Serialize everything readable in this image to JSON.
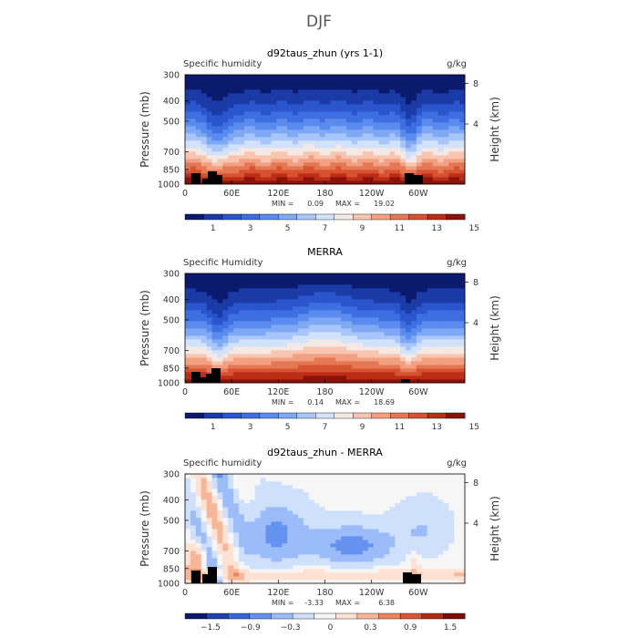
{
  "figure_title": "DJF",
  "chart_data": [
    {
      "type": "heatmap",
      "title": "d92taus_zhun (yrs 1-1)",
      "left_label": "Specific humidity",
      "right_label": "g/kg",
      "ylabel": "Pressure (mb)",
      "ylabel_right": "Height (km)",
      "x_ticks": [
        "0",
        "60E",
        "120E",
        "180",
        "120W",
        "60W"
      ],
      "y_ticks": [
        "300",
        "400",
        "500",
        "700",
        "850",
        "1000"
      ],
      "height_ticks": [
        "8",
        "4"
      ],
      "min_label": "MIN =",
      "min": "0.09",
      "max_label": "MAX =",
      "max": "19.02",
      "colorbar_labels": [
        "1",
        "3",
        "5",
        "7",
        "9",
        "11",
        "13",
        "15"
      ]
    },
    {
      "type": "heatmap",
      "title": "MERRA",
      "left_label": "Specific Humidity",
      "right_label": "g/kg",
      "ylabel": "Pressure (mb)",
      "ylabel_right": "Height (km)",
      "x_ticks": [
        "0",
        "60E",
        "120E",
        "180",
        "120W",
        "60W"
      ],
      "y_ticks": [
        "300",
        "400",
        "500",
        "700",
        "850",
        "1000"
      ],
      "height_ticks": [
        "8",
        "4"
      ],
      "min_label": "MIN =",
      "min": "0.14",
      "max_label": "MAX =",
      "max": "18.69",
      "colorbar_labels": [
        "1",
        "3",
        "5",
        "7",
        "9",
        "11",
        "13",
        "15"
      ]
    },
    {
      "type": "heatmap",
      "title": "d92taus_zhun - MERRA",
      "left_label": "Specific humidity",
      "right_label": "g/kg",
      "ylabel": "Pressure (mb)",
      "ylabel_right": "Height (km)",
      "x_ticks": [
        "0",
        "60E",
        "120E",
        "180",
        "120W",
        "60W"
      ],
      "y_ticks": [
        "300",
        "400",
        "500",
        "700",
        "850",
        "1000"
      ],
      "height_ticks": [
        "8",
        "4"
      ],
      "min_label": "MIN =",
      "min": "-3.33",
      "max_label": "MAX =",
      "max": "6.38",
      "colorbar_labels": [
        "−1.5",
        "−0.9",
        "−0.3",
        "0",
        "0.3",
        "0.9",
        "1.5"
      ]
    }
  ],
  "colors": {
    "sequential": [
      "#0a1b6e",
      "#1a3aa6",
      "#2a55cc",
      "#3d6fe0",
      "#5a8bee",
      "#7fa8f5",
      "#a9c6fa",
      "#d3e2fb",
      "#f4e9e4",
      "#f8c5b1",
      "#f2a081",
      "#e57854",
      "#d65230",
      "#bb2d16",
      "#8a1208"
    ],
    "diverging": [
      "#0a1b6e",
      "#1d3fb0",
      "#3566dc",
      "#6592ef",
      "#9bbcf8",
      "#cfe0fc",
      "#f6f6f6",
      "#fde1d3",
      "#f8b696",
      "#ee855c",
      "#d95533",
      "#b32a12",
      "#7d0d05"
    ],
    "topography": "#000000"
  }
}
